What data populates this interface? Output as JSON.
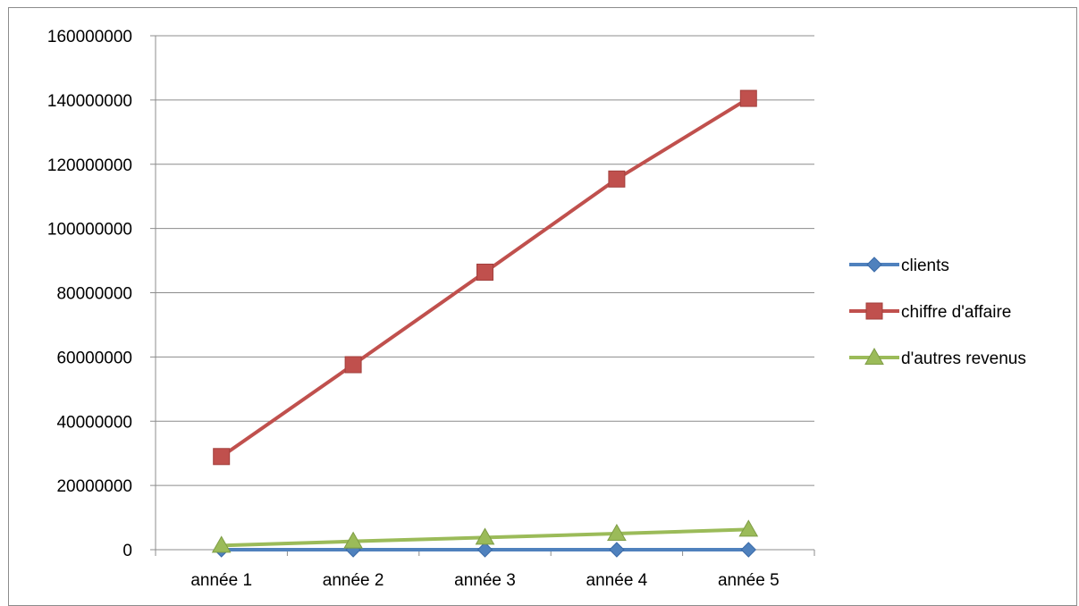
{
  "chart_data": {
    "type": "line",
    "title": "",
    "xlabel": "",
    "ylabel": "",
    "categories": [
      "année 1",
      "année 2",
      "année 3",
      "année 4",
      "année 5"
    ],
    "ylim": [
      0,
      160000000
    ],
    "yticks": [
      0,
      20000000,
      40000000,
      60000000,
      80000000,
      100000000,
      120000000,
      140000000,
      160000000
    ],
    "ytick_labels": [
      "0",
      "20000000",
      "40000000",
      "60000000",
      "80000000",
      "100000000",
      "120000000",
      "140000000",
      "160000000"
    ],
    "grid": true,
    "legend_position": "right",
    "series": [
      {
        "name": "clients",
        "color": "#4f81bd",
        "marker": "diamond",
        "values": [
          200,
          400,
          600,
          800,
          1000
        ]
      },
      {
        "name": "chiffre d'affaire",
        "color": "#c0504d",
        "marker": "square",
        "values": [
          29000000,
          57600000,
          86400000,
          115400000,
          140500000
        ]
      },
      {
        "name": "d'autres revenus",
        "color": "#9bbb59",
        "marker": "triangle",
        "values": [
          1300000,
          2600000,
          3800000,
          5000000,
          6300000
        ]
      }
    ]
  }
}
